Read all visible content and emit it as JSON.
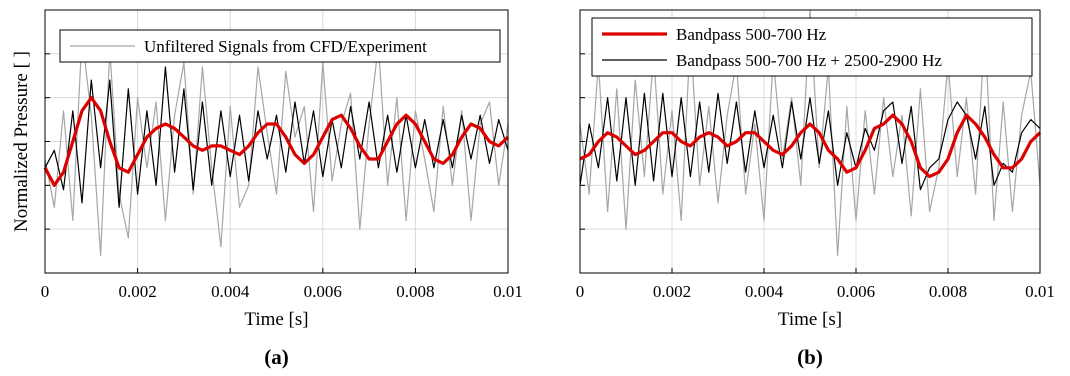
{
  "chart_data": [
    {
      "panel_label": "(a)",
      "type": "line",
      "xlabel": "Time [s]",
      "ylabel": "Normalized Pressure [ ]",
      "xlim": [
        0,
        0.01
      ],
      "ylim": [
        -1.5,
        1.5
      ],
      "xticks": [
        "0",
        "0.002",
        "0.004",
        "0.006",
        "0.008",
        "0.01"
      ],
      "yticks_labeled": false,
      "grid": true,
      "legend_position": "top",
      "series": [
        {
          "name": "Unfiltered Signals from CFD/Experiment",
          "color": "#a6a6a6",
          "x": [
            0,
            0.0002,
            0.0004,
            0.0006,
            0.0008,
            0.001,
            0.0012,
            0.0014,
            0.0016,
            0.0018,
            0.002,
            0.0022,
            0.0024,
            0.0026,
            0.0028,
            0.003,
            0.0032,
            0.0034,
            0.0036,
            0.0038,
            0.004,
            0.0042,
            0.0044,
            0.0046,
            0.0048,
            0.005,
            0.0052,
            0.0054,
            0.0056,
            0.0058,
            0.006,
            0.0062,
            0.0064,
            0.0066,
            0.0068,
            0.007,
            0.0072,
            0.0074,
            0.0076,
            0.0078,
            0.008,
            0.0082,
            0.0084,
            0.0086,
            0.0088,
            0.009,
            0.0092,
            0.0094,
            0.0096,
            0.0098,
            0.01
          ],
          "y": [
            -0.2,
            -0.75,
            0.35,
            -0.9,
            1.2,
            0.3,
            -1.3,
            1.05,
            -0.6,
            -1.1,
            0.5,
            -0.3,
            0.45,
            -0.9,
            0.3,
            0.9,
            -0.6,
            0.85,
            -0.3,
            -1.2,
            0.4,
            -0.75,
            -0.5,
            0.85,
            0.1,
            -0.6,
            0.8,
            0.05,
            0.4,
            -0.8,
            0.9,
            -0.45,
            0.2,
            0.55,
            -1.0,
            0.2,
            1.1,
            -0.5,
            0.5,
            -0.9,
            0.35,
            -0.2,
            -0.8,
            0.4,
            -0.5,
            0.35,
            -0.9,
            0.2,
            0.45,
            -0.5,
            0.2
          ]
        },
        {
          "name": "",
          "color": "#000000",
          "x": [
            0,
            0.0002,
            0.0004,
            0.0006,
            0.0008,
            0.001,
            0.0012,
            0.0014,
            0.0016,
            0.0018,
            0.002,
            0.0022,
            0.0024,
            0.0026,
            0.0028,
            0.003,
            0.0032,
            0.0034,
            0.0036,
            0.0038,
            0.004,
            0.0042,
            0.0044,
            0.0046,
            0.0048,
            0.005,
            0.0052,
            0.0054,
            0.0056,
            0.0058,
            0.006,
            0.0062,
            0.0064,
            0.0066,
            0.0068,
            0.007,
            0.0072,
            0.0074,
            0.0076,
            0.0078,
            0.008,
            0.0082,
            0.0084,
            0.0086,
            0.0088,
            0.009,
            0.0092,
            0.0094,
            0.0096,
            0.0098,
            0.01
          ],
          "y": [
            -0.3,
            -0.1,
            -0.55,
            0.35,
            -0.7,
            0.7,
            -0.3,
            0.7,
            -0.75,
            0.6,
            -0.6,
            0.35,
            -0.5,
            0.85,
            -0.35,
            0.6,
            -0.55,
            0.45,
            -0.5,
            0.35,
            -0.4,
            0.3,
            -0.45,
            0.35,
            -0.2,
            0.3,
            -0.35,
            0.45,
            -0.25,
            0.35,
            -0.4,
            0.25,
            -0.3,
            0.4,
            -0.2,
            0.45,
            -0.3,
            0.3,
            -0.35,
            0.3,
            -0.3,
            0.25,
            -0.3,
            0.25,
            -0.3,
            0.3,
            -0.2,
            0.3,
            -0.25,
            0.25,
            -0.1
          ]
        },
        {
          "name": "",
          "color": "#dd0000",
          "x": [
            0,
            0.0002,
            0.0004,
            0.0006,
            0.0008,
            0.001,
            0.0012,
            0.0014,
            0.0016,
            0.0018,
            0.002,
            0.0022,
            0.0024,
            0.0026,
            0.0028,
            0.003,
            0.0032,
            0.0034,
            0.0036,
            0.0038,
            0.004,
            0.0042,
            0.0044,
            0.0046,
            0.0048,
            0.005,
            0.0052,
            0.0054,
            0.0056,
            0.0058,
            0.006,
            0.0062,
            0.0064,
            0.0066,
            0.0068,
            0.007,
            0.0072,
            0.0074,
            0.0076,
            0.0078,
            0.008,
            0.0082,
            0.0084,
            0.0086,
            0.0088,
            0.009,
            0.0092,
            0.0094,
            0.0096,
            0.0098,
            0.01
          ],
          "y": [
            -0.3,
            -0.5,
            -0.35,
            0.0,
            0.35,
            0.5,
            0.35,
            0.0,
            -0.3,
            -0.35,
            -0.15,
            0.05,
            0.15,
            0.2,
            0.15,
            0.05,
            -0.05,
            -0.1,
            -0.05,
            -0.05,
            -0.1,
            -0.15,
            -0.05,
            0.1,
            0.2,
            0.2,
            0.05,
            -0.15,
            -0.25,
            -0.15,
            0.05,
            0.25,
            0.3,
            0.15,
            -0.05,
            -0.2,
            -0.2,
            0.0,
            0.2,
            0.3,
            0.2,
            0.0,
            -0.2,
            -0.25,
            -0.15,
            0.05,
            0.2,
            0.15,
            0.0,
            -0.05,
            0.05
          ]
        }
      ]
    },
    {
      "panel_label": "(b)",
      "type": "line",
      "xlabel": "Time [s]",
      "ylabel": "",
      "xlim": [
        0,
        0.01
      ],
      "ylim": [
        -1.5,
        1.5
      ],
      "xticks": [
        "0",
        "0.002",
        "0.004",
        "0.006",
        "0.008",
        "0.01"
      ],
      "yticks_labeled": false,
      "grid": true,
      "legend_position": "top",
      "series": [
        {
          "name": "",
          "color": "#a6a6a6",
          "x": [
            0,
            0.0002,
            0.0004,
            0.0006,
            0.0008,
            0.001,
            0.0012,
            0.0014,
            0.0016,
            0.0018,
            0.002,
            0.0022,
            0.0024,
            0.0026,
            0.0028,
            0.003,
            0.0032,
            0.0034,
            0.0036,
            0.0038,
            0.004,
            0.0042,
            0.0044,
            0.0046,
            0.0048,
            0.005,
            0.0052,
            0.0054,
            0.0056,
            0.0058,
            0.006,
            0.0062,
            0.0064,
            0.0066,
            0.0068,
            0.007,
            0.0072,
            0.0074,
            0.0076,
            0.0078,
            0.008,
            0.0082,
            0.0084,
            0.0086,
            0.0088,
            0.009,
            0.0092,
            0.0094,
            0.0096,
            0.0098,
            0.01
          ],
          "y": [
            0.2,
            -0.6,
            0.9,
            -0.8,
            0.6,
            -1.0,
            0.7,
            -0.4,
            1.0,
            -0.6,
            0.35,
            -0.9,
            1.2,
            -0.5,
            0.4,
            -0.7,
            0.3,
            0.9,
            -0.6,
            0.2,
            -0.9,
            0.95,
            -0.2,
            0.5,
            -0.5,
            1.5,
            -0.3,
            0.85,
            -1.3,
            0.4,
            -0.9,
            0.35,
            -0.6,
            0.5,
            -0.4,
            0.3,
            -0.85,
            0.6,
            -0.8,
            -0.3,
            0.9,
            -0.4,
            0.5,
            -0.6,
            1.3,
            -0.9,
            0.45,
            -0.8,
            0.3,
            0.8,
            -0.5
          ]
        },
        {
          "name": "Bandpass 500-700 Hz + 2500-2900 Hz",
          "color": "#000000",
          "x": [
            0,
            0.0002,
            0.0004,
            0.0006,
            0.0008,
            0.001,
            0.0012,
            0.0014,
            0.0016,
            0.0018,
            0.002,
            0.0022,
            0.0024,
            0.0026,
            0.0028,
            0.003,
            0.0032,
            0.0034,
            0.0036,
            0.0038,
            0.004,
            0.0042,
            0.0044,
            0.0046,
            0.0048,
            0.005,
            0.0052,
            0.0054,
            0.0056,
            0.0058,
            0.006,
            0.0062,
            0.0064,
            0.0066,
            0.0068,
            0.007,
            0.0072,
            0.0074,
            0.0076,
            0.0078,
            0.008,
            0.0082,
            0.0084,
            0.0086,
            0.0088,
            0.009,
            0.0092,
            0.0094,
            0.0096,
            0.0098,
            0.01
          ],
          "y": [
            -0.5,
            0.2,
            -0.3,
            0.5,
            -0.45,
            0.5,
            -0.5,
            0.55,
            -0.45,
            0.55,
            -0.4,
            0.5,
            -0.4,
            0.45,
            -0.35,
            0.55,
            -0.25,
            0.45,
            -0.35,
            0.35,
            -0.3,
            0.3,
            -0.3,
            0.45,
            -0.2,
            0.5,
            -0.25,
            0.35,
            -0.5,
            0.1,
            -0.3,
            0.15,
            -0.1,
            0.35,
            0.45,
            -0.25,
            0.4,
            -0.55,
            -0.3,
            -0.2,
            0.25,
            0.45,
            0.3,
            -0.2,
            0.4,
            -0.5,
            -0.25,
            -0.35,
            0.1,
            0.25,
            0.15
          ]
        },
        {
          "name": "Bandpass 500-700 Hz",
          "color": "#dd0000",
          "x": [
            0,
            0.0002,
            0.0004,
            0.0006,
            0.0008,
            0.001,
            0.0012,
            0.0014,
            0.0016,
            0.0018,
            0.002,
            0.0022,
            0.0024,
            0.0026,
            0.0028,
            0.003,
            0.0032,
            0.0034,
            0.0036,
            0.0038,
            0.004,
            0.0042,
            0.0044,
            0.0046,
            0.0048,
            0.005,
            0.0052,
            0.0054,
            0.0056,
            0.0058,
            0.006,
            0.0062,
            0.0064,
            0.0066,
            0.0068,
            0.007,
            0.0072,
            0.0074,
            0.0076,
            0.0078,
            0.008,
            0.0082,
            0.0084,
            0.0086,
            0.0088,
            0.009,
            0.0092,
            0.0094,
            0.0096,
            0.0098,
            0.01
          ],
          "y": [
            -0.2,
            -0.15,
            0.0,
            0.1,
            0.05,
            -0.05,
            -0.15,
            -0.1,
            0.0,
            0.1,
            0.1,
            0.0,
            -0.05,
            0.05,
            0.1,
            0.05,
            -0.05,
            0.0,
            0.1,
            0.1,
            0.0,
            -0.1,
            -0.15,
            -0.05,
            0.1,
            0.2,
            0.1,
            -0.1,
            -0.2,
            -0.35,
            -0.3,
            -0.1,
            0.15,
            0.2,
            0.3,
            0.2,
            0.0,
            -0.3,
            -0.4,
            -0.35,
            -0.2,
            0.1,
            0.3,
            0.2,
            0.05,
            -0.15,
            -0.3,
            -0.3,
            -0.2,
            0.0,
            0.1
          ]
        }
      ]
    }
  ]
}
